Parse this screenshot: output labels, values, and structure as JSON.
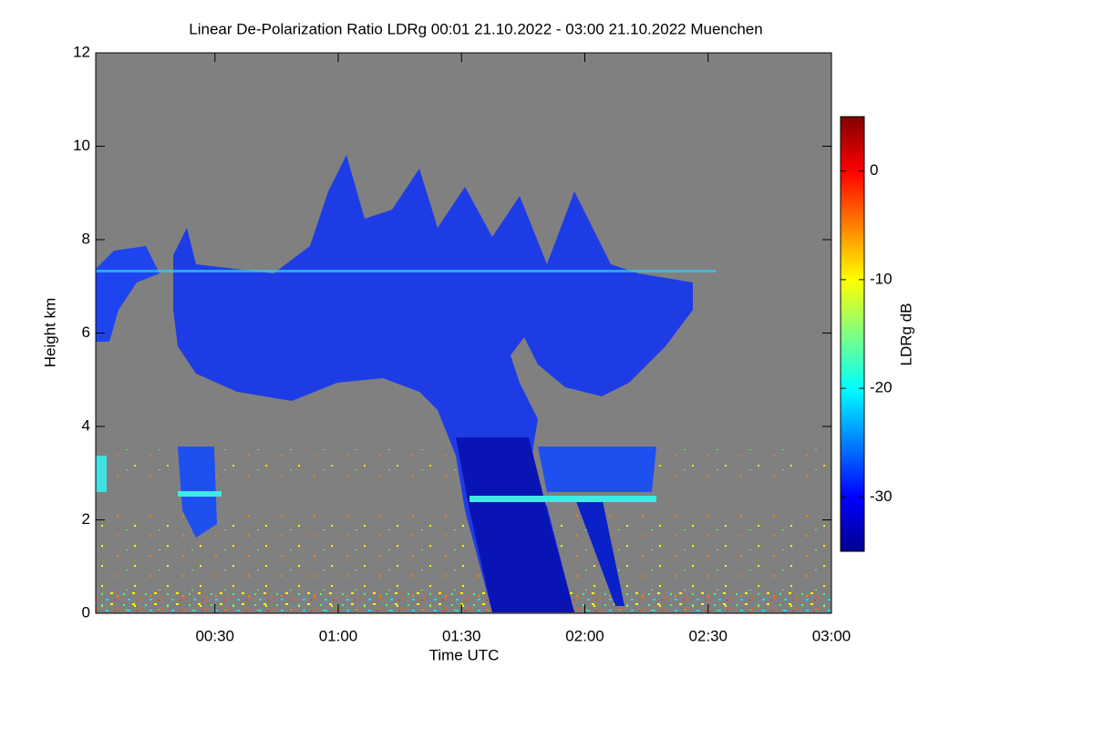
{
  "chart_data": {
    "type": "heatmap",
    "title": "Linear De-Polarization Ratio LDRg   00:01 21.10.2022 - 03:00 21.10.2022 Muenchen",
    "x_label": "Time UTC",
    "y_label": "Height km",
    "colorbar_label": "LDRg dB",
    "xlim": [
      1,
      180
    ],
    "xticks": [
      {
        "value": 30,
        "label": "00:30"
      },
      {
        "value": 60,
        "label": "01:00"
      },
      {
        "value": 90,
        "label": "01:30"
      },
      {
        "value": 120,
        "label": "02:00"
      },
      {
        "value": 150,
        "label": "02:30"
      },
      {
        "value": 180,
        "label": "03:00"
      }
    ],
    "ylim": [
      0,
      12
    ],
    "yticks": [
      0,
      2,
      4,
      6,
      8,
      10,
      12
    ],
    "clim": [
      -35,
      5
    ],
    "cticks": [
      -30,
      -20,
      -10,
      0
    ],
    "colormap": [
      "#00008f",
      "#0000ff",
      "#0080ff",
      "#00ffff",
      "#80ff80",
      "#ffff00",
      "#ff8000",
      "#ff0000",
      "#800000"
    ],
    "background": "#808080"
  }
}
